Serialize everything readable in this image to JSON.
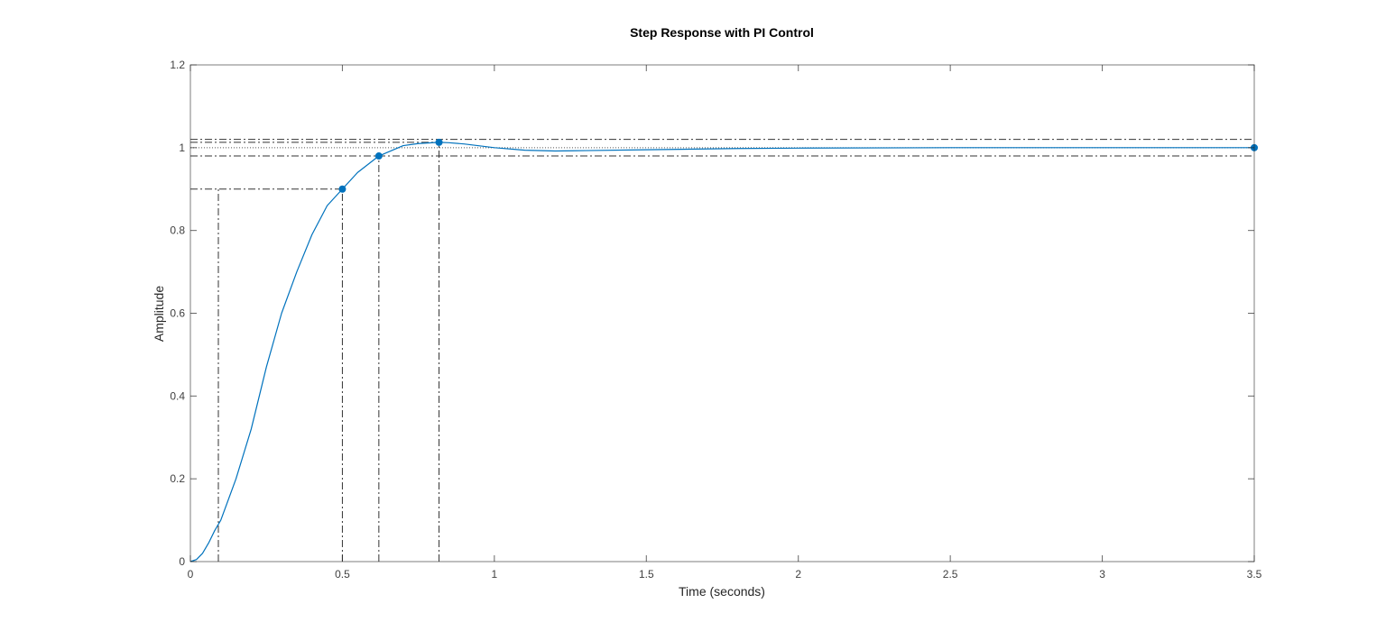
{
  "chart_data": {
    "type": "line",
    "title": "Step Response with PI Control",
    "xlabel": "Time (seconds)",
    "ylabel": "Amplitude",
    "xlim": [
      0,
      3.5
    ],
    "ylim": [
      0,
      1.2
    ],
    "x_ticks": [
      "0",
      "0.5",
      "1",
      "1.5",
      "2",
      "2.5",
      "3",
      "3.5"
    ],
    "y_ticks": [
      "0",
      "0.2",
      "0.4",
      "0.6",
      "0.8",
      "1",
      "1.2"
    ],
    "grid": false,
    "legend": "none",
    "series": [
      {
        "color": "#0072bd",
        "x": [
          0,
          0.02,
          0.04,
          0.06,
          0.08,
          0.1,
          0.15,
          0.2,
          0.25,
          0.3,
          0.35,
          0.4,
          0.45,
          0.5,
          0.55,
          0.62,
          0.7,
          0.75,
          0.818,
          0.85,
          0.9,
          1.0,
          1.1,
          1.2,
          1.3,
          1.5,
          1.8,
          2.0,
          2.5,
          3.0,
          3.5
        ],
        "y": [
          0,
          0.005,
          0.02,
          0.045,
          0.075,
          0.1,
          0.2,
          0.32,
          0.47,
          0.6,
          0.7,
          0.79,
          0.86,
          0.9,
          0.94,
          0.98,
          1.005,
          1.01,
          1.013,
          1.012,
          1.009,
          1.0,
          0.994,
          0.992,
          0.993,
          0.995,
          0.998,
          0.999,
          1.0,
          1.0,
          1.0
        ]
      }
    ],
    "characteristics": [
      {
        "name": "rise_time_start",
        "x": 0.092,
        "y": 0.1
      },
      {
        "name": "rise_time_end",
        "x": 0.5,
        "y": 0.9
      },
      {
        "name": "settling_time",
        "x": 0.62,
        "y": 0.98
      },
      {
        "name": "peak_response",
        "x": 0.818,
        "y": 1.013
      },
      {
        "name": "steady_state",
        "x": 3.5,
        "y": 1.0
      }
    ],
    "settling_band": [
      0.98,
      1.02
    ],
    "steady_state_value": 1.0
  }
}
